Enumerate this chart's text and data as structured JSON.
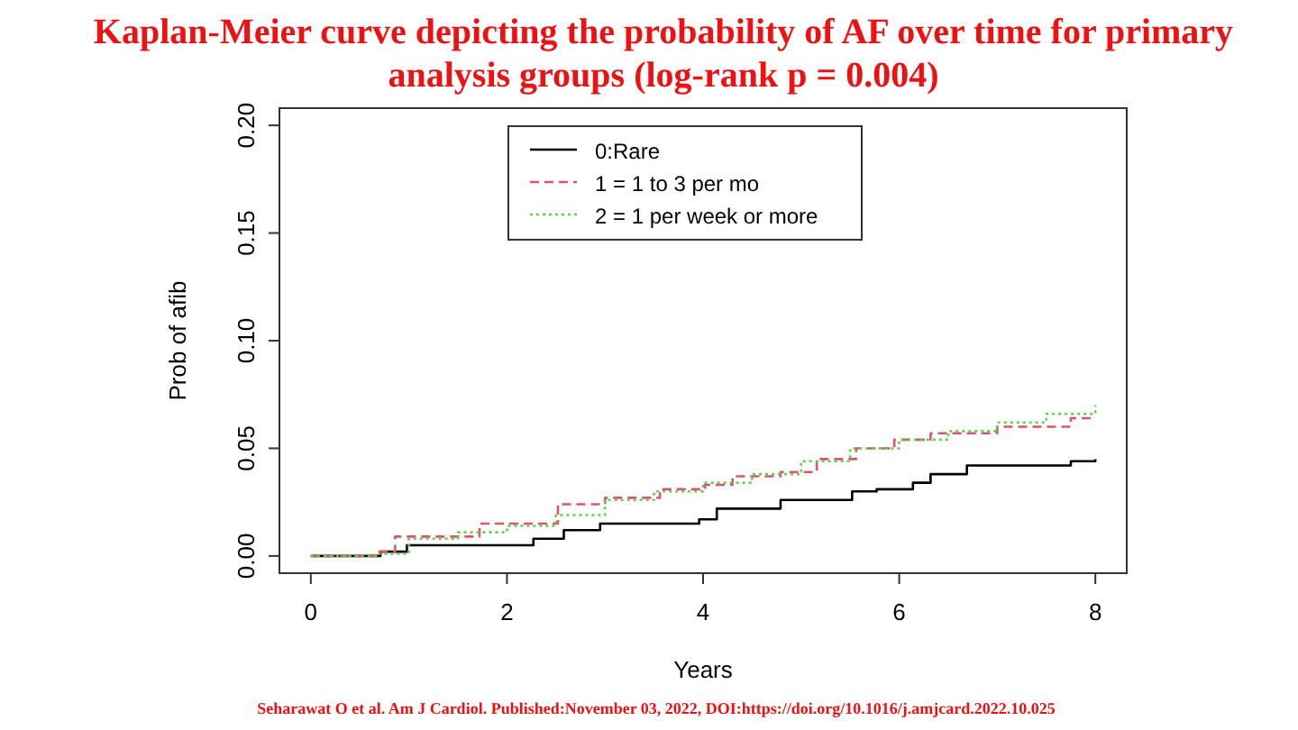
{
  "chart_data": {
    "type": "step",
    "title": "Kaplan-Meier curve depicting the probability of AF over time for primary analysis groups (log-rank p = 0.004)",
    "xlabel": "Years",
    "ylabel": "Prob of afib",
    "xlim": [
      -0.32,
      8.32
    ],
    "ylim": [
      -0.008,
      0.208
    ],
    "xticks": [
      0,
      2,
      4,
      6,
      8
    ],
    "yticks": [
      {
        "value": 0,
        "label": "0.00"
      },
      {
        "value": 0.05,
        "label": "0.05"
      },
      {
        "value": 0.1,
        "label": "0.10"
      },
      {
        "value": 0.15,
        "label": "0.15"
      },
      {
        "value": 0.2,
        "label": "0.20"
      }
    ],
    "grid": false,
    "legend": "top",
    "annotations": [
      "Seharawat O et al. Am J Cardiol.  Published:November 03, 2022, DOI:https://doi.org/10.1016/j.amjcard.2022.10.025"
    ],
    "series": [
      {
        "name": "0:Rare",
        "color": "#000000",
        "line_style": "solid",
        "x": [
          0,
          0.71,
          0.98,
          2.27,
          2.58,
          2.95,
          3.96,
          4.14,
          4.79,
          5.52,
          5.77,
          6.14,
          6.32,
          6.69,
          7.75,
          8
        ],
        "values": [
          0,
          0.002,
          0.005,
          0.008,
          0.012,
          0.015,
          0.017,
          0.022,
          0.026,
          0.03,
          0.031,
          0.034,
          0.038,
          0.042,
          0.044,
          0.045
        ]
      },
      {
        "name": "1 = 1 to 3 per mo",
        "color": "#df536b",
        "line_style": "dashed",
        "x": [
          0,
          0.7,
          0.86,
          1.72,
          2.52,
          3.0,
          3.56,
          4.02,
          4.3,
          4.79,
          5.16,
          5.56,
          5.95,
          6.32,
          7.0,
          7.75,
          8
        ],
        "values": [
          0,
          0.002,
          0.009,
          0.015,
          0.024,
          0.027,
          0.031,
          0.033,
          0.037,
          0.039,
          0.045,
          0.05,
          0.054,
          0.057,
          0.06,
          0.064,
          0.064
        ]
      },
      {
        "name": "2 = 1 per week or more",
        "color": "#61d04f",
        "line_style": "dotted",
        "x": [
          0,
          0.65,
          1.0,
          1.5,
          2.0,
          2.5,
          3.0,
          3.5,
          4.0,
          4.5,
          5.0,
          5.5,
          6.0,
          6.5,
          7.0,
          7.5,
          8.0
        ],
        "values": [
          0,
          0.001,
          0.008,
          0.011,
          0.014,
          0.019,
          0.026,
          0.03,
          0.034,
          0.038,
          0.044,
          0.05,
          0.054,
          0.058,
          0.062,
          0.066,
          0.07
        ]
      }
    ]
  }
}
